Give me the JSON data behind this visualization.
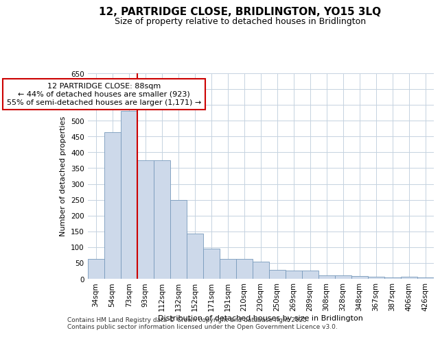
{
  "title_line1": "12, PARTRIDGE CLOSE, BRIDLINGTON, YO15 3LQ",
  "title_line2": "Size of property relative to detached houses in Bridlington",
  "xlabel": "Distribution of detached houses by size in Bridlington",
  "ylabel": "Number of detached properties",
  "footer_line1": "Contains HM Land Registry data © Crown copyright and database right 2025.",
  "footer_line2": "Contains public sector information licensed under the Open Government Licence v3.0.",
  "annotation_line1": "12 PARTRIDGE CLOSE: 88sqm",
  "annotation_line2": "← 44% of detached houses are smaller (923)",
  "annotation_line3": "55% of semi-detached houses are larger (1,171) →",
  "bar_color": "#cdd9ea",
  "bar_edge_color": "#7799bb",
  "vline_color": "#cc0000",
  "annotation_box_edge_color": "#cc0000",
  "background_color": "#ffffff",
  "grid_color": "#c5d2e0",
  "categories": [
    "34sqm",
    "54sqm",
    "73sqm",
    "93sqm",
    "112sqm",
    "132sqm",
    "152sqm",
    "171sqm",
    "191sqm",
    "210sqm",
    "230sqm",
    "250sqm",
    "269sqm",
    "289sqm",
    "308sqm",
    "328sqm",
    "348sqm",
    "367sqm",
    "387sqm",
    "406sqm",
    "426sqm"
  ],
  "values": [
    62,
    464,
    530,
    375,
    375,
    250,
    143,
    95,
    63,
    63,
    55,
    28,
    27,
    27,
    11,
    11,
    8,
    7,
    5,
    7,
    5
  ],
  "vline_x_index": 2,
  "ylim": [
    0,
    650
  ],
  "yticks": [
    0,
    50,
    100,
    150,
    200,
    250,
    300,
    350,
    400,
    450,
    500,
    550,
    600,
    650
  ],
  "title1_fontsize": 11,
  "title2_fontsize": 9,
  "xlabel_fontsize": 8,
  "ylabel_fontsize": 8,
  "tick_fontsize": 7.5,
  "footer_fontsize": 6.5,
  "annotation_fontsize": 8
}
